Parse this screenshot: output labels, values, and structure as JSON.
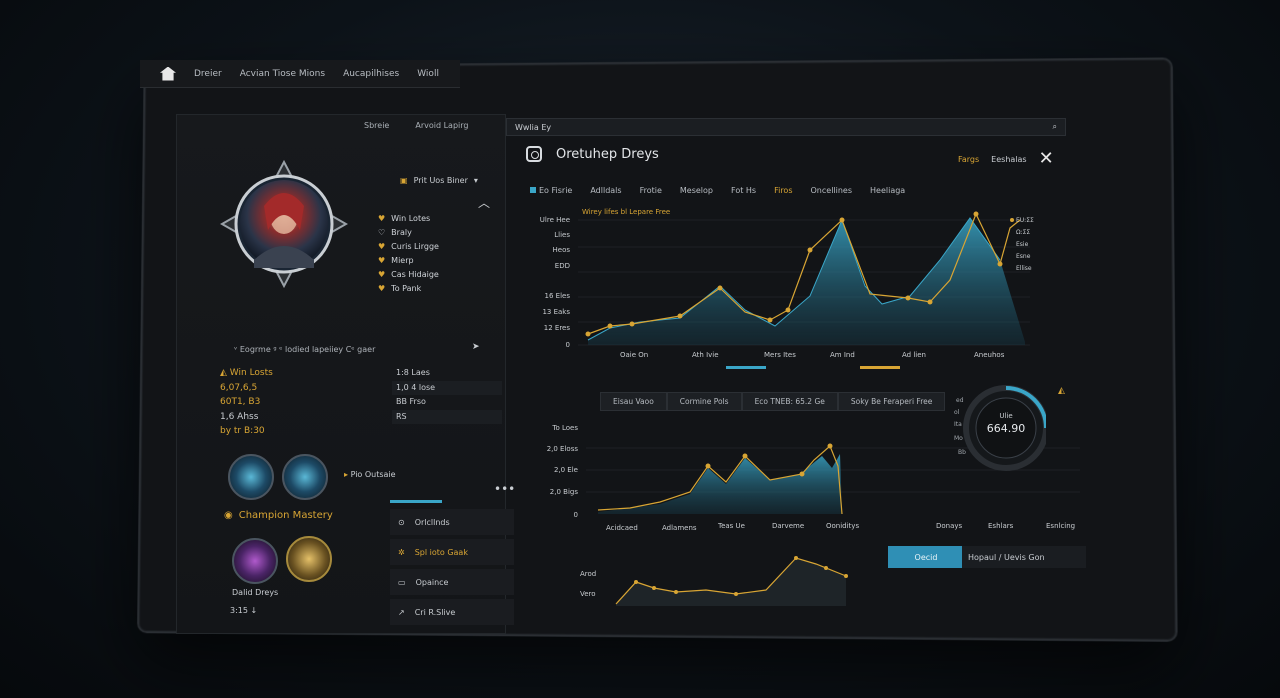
{
  "topbar": {
    "items": [
      "Dreier",
      "Acvian Tiose Mions",
      "Aucapilhises",
      "Wioll"
    ]
  },
  "left_tabs": [
    "Sbreie",
    "Arvoid Lapirg"
  ],
  "search": {
    "value": "Wwlia Ey"
  },
  "profile": {
    "dropdown_label": "Prit Uos Biner",
    "menu": [
      "Win Lotes",
      "Braly",
      "Curis Lirgge",
      "Mierp",
      "Cas Hidaige",
      "To Pank"
    ],
    "divider_text": "ᵛ Eogrme ᵍ ᵉ lodied lapeiiey Cᵉ gaer"
  },
  "stats_left": [
    "Win Losts",
    "6,07,6,5",
    "60T1, B3",
    "1,6 Ahss",
    "by tr B:30"
  ],
  "stats_right": [
    "1:8 Laes",
    "1,0 4 lose",
    "BB Frso",
    "RS"
  ],
  "mastery": {
    "title": "Champion Mastery",
    "caption": "Dalid Dreys",
    "caption2": "3:15 ↓",
    "side_label": "Pio Outsaie"
  },
  "side_menu": [
    "Orlcllnds",
    "Spl ioto Gaak",
    "Opaince",
    "Cri R.Slive"
  ],
  "header": {
    "title": "Oretuhep Dreys",
    "right_link": "Fargs",
    "right_link2": "Eeshalas"
  },
  "chart_tabs": [
    "Eo Fisrie",
    "Adlldals",
    "Frotie",
    "Meselop",
    "Fot Hs",
    "Firos",
    "Oncellines",
    "Heeliaga"
  ],
  "main_chart": {
    "title": "Wirey lifes bl Lepare Free",
    "y_labels": [
      "Ulre Hee",
      "Llies",
      "Heos",
      "EDD",
      "16 Eles",
      "13 Eaks",
      "12 Eres",
      "0"
    ],
    "x_labels": [
      "Oaie On",
      "Ath Ivie",
      "Mers Ites",
      "Am Ind",
      "Ad lien",
      "Aneuhos"
    ],
    "legend": [
      "EU:ΣΣ",
      "Ω:ΣΣ",
      "Esie",
      "Esne",
      "Ellise"
    ]
  },
  "sub_tabs": [
    "Eisau Vaoo",
    "Cormine Pols",
    "Eco TNEB: 65.2 Ge",
    "Soky Be Feraperi Free"
  ],
  "second_chart": {
    "y_labels": [
      "To Loes",
      "2,0 Eloss",
      "2,0 Ele",
      "2,0 Bigs",
      "0"
    ],
    "x_labels": [
      "Acidcaed",
      "Adlamens",
      "Teas Ue",
      "Darveme",
      "Ooniditys",
      "Donays",
      "Eshlars",
      "Esnlcing"
    ]
  },
  "third_chart": {
    "y_labels": [
      "Arod",
      "Vero"
    ]
  },
  "gauge": {
    "label": "Ulie",
    "value": "664.90",
    "ticks": [
      "ed",
      "ol",
      "Ita",
      "Mo",
      "Bb"
    ]
  },
  "actions": {
    "button": "Oecid",
    "text": "Hopaul / Uevis Gon"
  },
  "colors": {
    "accent_blue": "#3aa6c8",
    "accent_gold": "#d8a534"
  }
}
